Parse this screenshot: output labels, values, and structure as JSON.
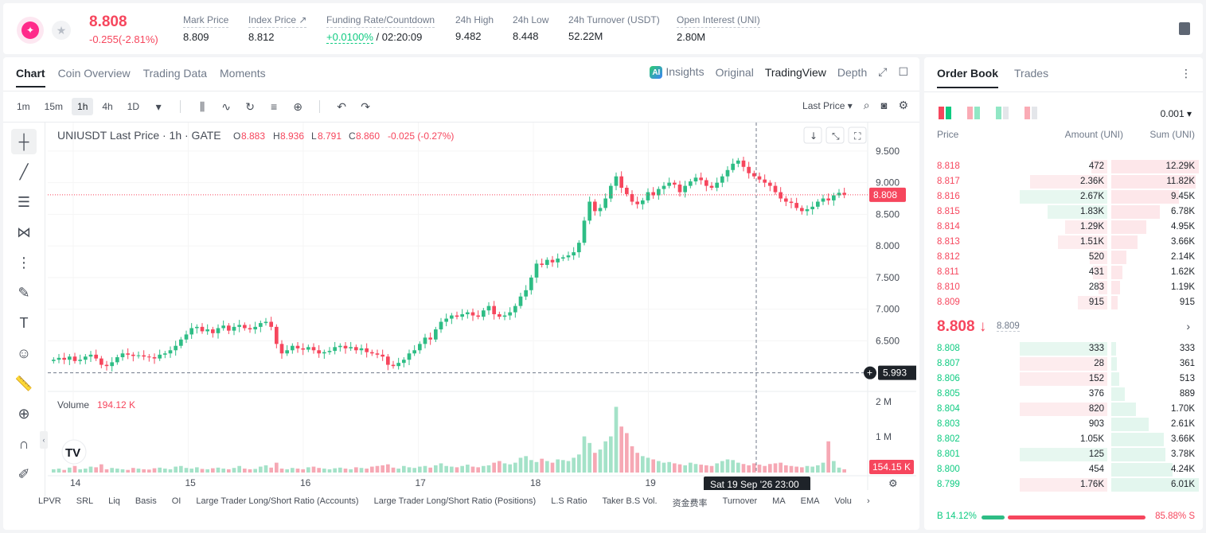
{
  "header": {
    "last_price": "8.808",
    "change": "-0.255(-2.81%)",
    "stats": [
      {
        "label": "Mark Price",
        "value": "8.809"
      },
      {
        "label": "Index Price ↗",
        "value": "8.812"
      },
      {
        "label": "Funding Rate/Countdown",
        "value_green": "+0.0100%",
        "value": " / 02:20:09"
      },
      {
        "label": "24h High",
        "value": "9.482"
      },
      {
        "label": "24h Low",
        "value": "8.448"
      },
      {
        "label": "24h Turnover (USDT)",
        "value": "52.22M"
      },
      {
        "label": "Open Interest (UNI)",
        "value": "2.80M"
      }
    ]
  },
  "chart_tabs": [
    "Chart",
    "Coin Overview",
    "Trading Data",
    "Moments"
  ],
  "view_tabs": {
    "insights": "Insights",
    "original": "Original",
    "tradingview": "TradingView",
    "depth": "Depth"
  },
  "timeframes": [
    "1m",
    "15m",
    "1h",
    "4h",
    "1D"
  ],
  "last_price_selector": "Last Price ▾",
  "chart_data": {
    "type": "candlestick",
    "legend": {
      "symbol": "UNIUSDT Last Price · 1h · GATE",
      "o": "8.883",
      "h": "8.936",
      "l": "8.791",
      "c": "8.860",
      "chg": "-0.025 (-0.27%)"
    },
    "y_ticks": [
      "9.500",
      "9.000",
      "8.500",
      "8.000",
      "7.500",
      "7.000",
      "6.500"
    ],
    "ylim": [
      5.8,
      9.7
    ],
    "x_ticks": [
      "14",
      "15",
      "16",
      "17",
      "18",
      "19"
    ],
    "price_label": "8.808",
    "crosshair_label": "5.993",
    "crosshair_time": "Sat 19 Sep '26   23:00",
    "volume_label": "Volume",
    "volume_value": "194.12 K",
    "volume_ticks": [
      "2 M",
      "1 M"
    ],
    "volume_last": "154.15 K",
    "close_path": [
      6.2,
      6.23,
      6.2,
      6.25,
      6.18,
      6.2,
      6.25,
      6.28,
      6.22,
      6.12,
      6.1,
      6.16,
      6.24,
      6.3,
      6.28,
      6.26,
      6.27,
      6.25,
      6.24,
      6.22,
      6.28,
      6.3,
      6.35,
      6.42,
      6.52,
      6.6,
      6.7,
      6.72,
      6.65,
      6.68,
      6.62,
      6.7,
      6.74,
      6.66,
      6.72,
      6.75,
      6.7,
      6.68,
      6.72,
      6.78,
      6.8,
      6.72,
      6.45,
      6.3,
      6.35,
      6.42,
      6.38,
      6.36,
      6.4,
      6.35,
      6.3,
      6.32,
      6.34,
      6.4,
      6.42,
      6.38,
      6.4,
      6.35,
      6.38,
      6.32,
      6.3,
      6.28,
      6.25,
      6.12,
      6.1,
      6.15,
      6.2,
      6.3,
      6.35,
      6.45,
      6.55,
      6.52,
      6.68,
      6.8,
      6.85,
      6.9,
      6.88,
      6.92,
      6.95,
      6.9,
      6.88,
      6.98,
      7.05,
      6.92,
      6.88,
      6.9,
      6.95,
      7.05,
      7.2,
      7.3,
      7.5,
      7.72,
      7.7,
      7.78,
      7.74,
      7.8,
      7.82,
      7.85,
      7.9,
      8.05,
      8.4,
      8.7,
      8.55,
      8.6,
      8.75,
      8.95,
      9.1,
      8.92,
      8.82,
      8.7,
      8.66,
      8.72,
      8.85,
      8.8,
      8.9,
      8.95,
      9.0,
      8.97,
      8.85,
      8.95,
      9.02,
      9.08,
      9.04,
      8.95,
      8.92,
      9.0,
      9.1,
      9.2,
      9.3,
      9.35,
      9.25,
      9.15,
      9.1,
      9.05,
      9.0,
      8.95,
      8.85,
      8.75,
      8.7,
      8.68,
      8.6,
      8.55,
      8.58,
      8.62,
      8.7,
      8.75,
      8.72,
      8.8,
      8.84,
      8.81
    ],
    "volume_path": [
      0.1,
      0.12,
      0.08,
      0.15,
      0.2,
      0.1,
      0.12,
      0.18,
      0.16,
      0.25,
      0.1,
      0.14,
      0.12,
      0.1,
      0.08,
      0.14,
      0.12,
      0.1,
      0.09,
      0.13,
      0.15,
      0.12,
      0.1,
      0.18,
      0.2,
      0.14,
      0.12,
      0.16,
      0.11,
      0.1,
      0.13,
      0.15,
      0.12,
      0.1,
      0.14,
      0.2,
      0.12,
      0.1,
      0.11,
      0.18,
      0.22,
      0.15,
      0.3,
      0.12,
      0.1,
      0.14,
      0.12,
      0.1,
      0.16,
      0.18,
      0.14,
      0.12,
      0.1,
      0.13,
      0.15,
      0.12,
      0.1,
      0.16,
      0.14,
      0.12,
      0.18,
      0.2,
      0.22,
      0.25,
      0.15,
      0.12,
      0.2,
      0.16,
      0.14,
      0.18,
      0.2,
      0.15,
      0.22,
      0.28,
      0.2,
      0.18,
      0.16,
      0.2,
      0.24,
      0.18,
      0.16,
      0.2,
      0.22,
      0.3,
      0.35,
      0.28,
      0.25,
      0.3,
      0.45,
      0.5,
      0.38,
      0.32,
      0.42,
      0.35,
      0.3,
      0.4,
      0.38,
      0.35,
      0.45,
      0.55,
      1.1,
      0.9,
      0.6,
      0.7,
      0.95,
      1.1,
      2.0,
      1.4,
      1.2,
      0.8,
      0.6,
      0.5,
      0.45,
      0.4,
      0.35,
      0.3,
      0.32,
      0.28,
      0.25,
      0.22,
      0.3,
      0.26,
      0.24,
      0.22,
      0.2,
      0.28,
      0.35,
      0.4,
      0.38,
      0.3,
      0.26,
      0.22,
      0.28,
      0.24,
      0.2,
      0.26,
      0.28,
      0.3,
      0.22,
      0.2,
      0.18,
      0.16,
      0.2,
      0.18,
      0.22,
      0.3,
      0.95,
      0.35,
      0.15
    ]
  },
  "bottom_indicators": [
    "LPVR",
    "SRL",
    "Liq",
    "Basis",
    "OI",
    "Large Trader Long/Short Ratio (Accounts)",
    "Large Trader Long/Short Ratio (Positions)",
    "L.S Ratio",
    "Taker B.S Vol.",
    "资金费率",
    "Turnover",
    "MA",
    "EMA",
    "Volu"
  ],
  "orderbook": {
    "tabs": [
      "Order Book",
      "Trades"
    ],
    "precision": "0.001 ▾",
    "head": [
      "Price",
      "Amount (UNI)",
      "Sum (UNI)"
    ],
    "asks": [
      {
        "p": "8.818",
        "a": "472",
        "s": "12.29K",
        "af": 0.18,
        "sf": 1.0
      },
      {
        "p": "8.817",
        "a": "2.36K",
        "s": "11.82K",
        "af": 0.88,
        "sf": 0.96
      },
      {
        "p": "8.816",
        "a": "2.67K",
        "s": "9.45K",
        "af": 1.0,
        "sf": 0.77,
        "g": true
      },
      {
        "p": "8.815",
        "a": "1.83K",
        "s": "6.78K",
        "af": 0.68,
        "sf": 0.55,
        "g": true
      },
      {
        "p": "8.814",
        "a": "1.29K",
        "s": "4.95K",
        "af": 0.48,
        "sf": 0.4
      },
      {
        "p": "8.813",
        "a": "1.51K",
        "s": "3.66K",
        "af": 0.56,
        "sf": 0.3
      },
      {
        "p": "8.812",
        "a": "520",
        "s": "2.14K",
        "af": 0.2,
        "sf": 0.17
      },
      {
        "p": "8.811",
        "a": "431",
        "s": "1.62K",
        "af": 0.16,
        "sf": 0.13
      },
      {
        "p": "8.810",
        "a": "283",
        "s": "1.19K",
        "af": 0.1,
        "sf": 0.1
      },
      {
        "p": "8.809",
        "a": "915",
        "s": "915",
        "af": 0.34,
        "sf": 0.07
      }
    ],
    "mid": {
      "price": "8.808 ↓",
      "mark": "8.809",
      "arrow": "›"
    },
    "bids": [
      {
        "p": "8.808",
        "a": "333",
        "s": "333",
        "af": 1.0,
        "sf": 0.05,
        "g": true
      },
      {
        "p": "8.807",
        "a": "28",
        "s": "361",
        "af": 1.0,
        "sf": 0.06
      },
      {
        "p": "8.806",
        "a": "152",
        "s": "513",
        "af": 1.0,
        "sf": 0.09
      },
      {
        "p": "8.805",
        "a": "376",
        "s": "889",
        "af": 0.0,
        "sf": 0.15
      },
      {
        "p": "8.804",
        "a": "820",
        "s": "1.70K",
        "af": 1.0,
        "sf": 0.28
      },
      {
        "p": "8.803",
        "a": "903",
        "s": "2.61K",
        "af": 0.0,
        "sf": 0.43
      },
      {
        "p": "8.802",
        "a": "1.05K",
        "s": "3.66K",
        "af": 0.0,
        "sf": 0.6
      },
      {
        "p": "8.801",
        "a": "125",
        "s": "3.78K",
        "af": 1.0,
        "sf": 0.62,
        "g": true
      },
      {
        "p": "8.800",
        "a": "454",
        "s": "4.24K",
        "af": 0.0,
        "sf": 0.7
      },
      {
        "p": "8.799",
        "a": "1.76K",
        "s": "6.01K",
        "af": 1.0,
        "sf": 1.0
      }
    ],
    "ratio": {
      "buy": "B 14.12%",
      "sell": "85.88% S",
      "buy_frac": 0.1412
    }
  }
}
